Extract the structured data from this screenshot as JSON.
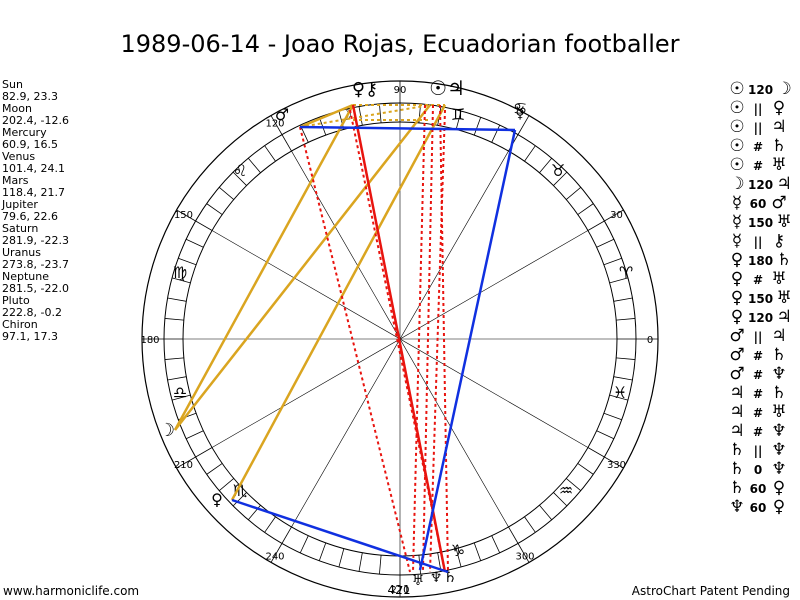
{
  "title": "1989-06-14 - Joao Rojas, Ecuadorian footballer",
  "planets": [
    {
      "name": "Sun",
      "coords": "82.9, 23.3"
    },
    {
      "name": "Moon",
      "coords": "202.4, -12.6"
    },
    {
      "name": "Mercury",
      "coords": "60.9, 16.5"
    },
    {
      "name": "Venus",
      "coords": "101.4, 24.1"
    },
    {
      "name": "Mars",
      "coords": "118.4, 21.7"
    },
    {
      "name": "Jupiter",
      "coords": "79.6, 22.6"
    },
    {
      "name": "Saturn",
      "coords": "281.9, -22.3"
    },
    {
      "name": "Uranus",
      "coords": "273.8, -23.7"
    },
    {
      "name": "Neptune",
      "coords": "281.5, -22.0"
    },
    {
      "name": "Pluto",
      "coords": "222.8, -0.2"
    },
    {
      "name": "Chiron",
      "coords": "97.1, 17.3"
    }
  ],
  "aspects": [
    {
      "p1": "☉",
      "aspect": "120",
      "p2": "☽"
    },
    {
      "p1": "☉",
      "aspect": "||",
      "p2": "♀"
    },
    {
      "p1": "☉",
      "aspect": "||",
      "p2": "♃"
    },
    {
      "p1": "☉",
      "aspect": "#",
      "p2": "♄"
    },
    {
      "p1": "☉",
      "aspect": "#",
      "p2": "♅"
    },
    {
      "p1": "☽",
      "aspect": "120",
      "p2": "♃"
    },
    {
      "p1": "☿",
      "aspect": "60",
      "p2": "♂"
    },
    {
      "p1": "☿",
      "aspect": "150",
      "p2": "♅"
    },
    {
      "p1": "☿",
      "aspect": "||",
      "p2": "⚷"
    },
    {
      "p1": "♀",
      "aspect": "180",
      "p2": "♄"
    },
    {
      "p1": "♀",
      "aspect": "#",
      "p2": "♅"
    },
    {
      "p1": "♀",
      "aspect": "150",
      "p2": "♅"
    },
    {
      "p1": "♀",
      "aspect": "120",
      "p2": "♃"
    },
    {
      "p1": "♂",
      "aspect": "||",
      "p2": "♃"
    },
    {
      "p1": "♂",
      "aspect": "#",
      "p2": "♄"
    },
    {
      "p1": "♂",
      "aspect": "#",
      "p2": "♆"
    },
    {
      "p1": "♃",
      "aspect": "#",
      "p2": "♄"
    },
    {
      "p1": "♃",
      "aspect": "#",
      "p2": "♅"
    },
    {
      "p1": "♃",
      "aspect": "#",
      "p2": "♆"
    },
    {
      "p1": "♄",
      "aspect": "||",
      "p2": "♆"
    },
    {
      "p1": "♄",
      "aspect": "0",
      "p2": "♆"
    },
    {
      "p1": "♄",
      "aspect": "60",
      "p2": "♀"
    },
    {
      "p1": "♆",
      "aspect": "60",
      "p2": "♀"
    }
  ],
  "wheel_labels": {
    "deg0": "0",
    "deg30": "30",
    "deg90": "90",
    "deg120": "120",
    "deg150": "150",
    "deg180": "180",
    "deg210": "210",
    "deg240": "240",
    "deg270": "270",
    "deg300": "300",
    "deg330": "330",
    "bottom_number": "421"
  },
  "zodiac_signs": [
    "♈",
    "♉",
    "♊",
    "♋",
    "♌",
    "♍",
    "♎",
    "♏",
    "♐",
    "♑",
    "♒",
    "♓"
  ],
  "planet_glyphs": {
    "sun_jup": "☉♃",
    "venus_chiron": "♀⚷",
    "mars": "♂",
    "moon_top": "☽",
    "gemini_top": "♊",
    "mercury": "☿",
    "moon": "☽",
    "leo_label": "♌",
    "virgo_label": "♍",
    "libra_label": "♎",
    "pluto": "♀",
    "scorpio_label": "♏",
    "sat": "♄",
    "nep": "♆",
    "uran": "♅",
    "capricorn_label": "♑",
    "aquarius_label": "♒",
    "pisces_label": "♓",
    "aries_label": "♈",
    "taurus_label": "♉",
    "cancer_label": "♋",
    "sagittarius_label": "♐"
  },
  "footer": {
    "left": "www.harmoniclife.com",
    "right": "AstroChart Patent Pending"
  },
  "colors": {
    "trine": "#daa520",
    "square": "#e8140f",
    "opposition": "#1030e0",
    "sextile": "#1030e0",
    "wheel": "#000000"
  }
}
